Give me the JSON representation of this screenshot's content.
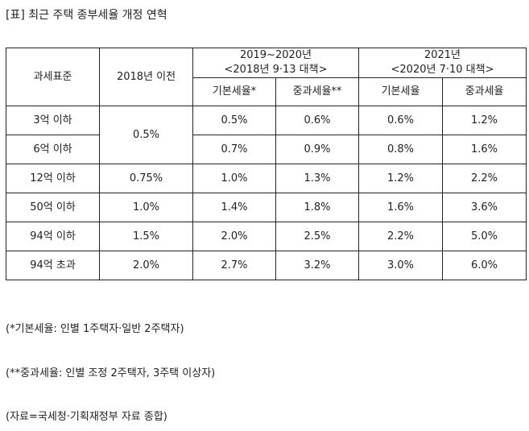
{
  "title": "[표] 최근 주택 종부세율 개정 연혁",
  "table": {
    "headers": {
      "tax_base": "과세표준",
      "before_2018": "2018년 이전",
      "period_2019_2020": "2019~2020년",
      "period_2019_2020_sub": "<2018년 9·13 대책>",
      "period_2021": "2021년",
      "period_2021_sub": "<2020년 7·10 대책>",
      "basic_rate_2019": "기본세율*",
      "heavy_rate_2019": "중과세율**",
      "basic_rate_2021": "기본세율",
      "heavy_rate_2021": "중과세율"
    },
    "rows": [
      {
        "base": "3억 이하",
        "before_2018": "0.5%",
        "basic_2019": "0.5%",
        "heavy_2019": "0.6%",
        "basic_2021": "0.6%",
        "heavy_2021": "1.2%"
      },
      {
        "base": "6억 이하",
        "before_2018": "0.5%",
        "basic_2019": "0.7%",
        "heavy_2019": "0.9%",
        "basic_2021": "0.8%",
        "heavy_2021": "1.6%"
      },
      {
        "base": "12억 이하",
        "before_2018": "0.75%",
        "basic_2019": "1.0%",
        "heavy_2019": "1.3%",
        "basic_2021": "1.2%",
        "heavy_2021": "2.2%"
      },
      {
        "base": "50억 이하",
        "before_2018": "1.0%",
        "basic_2019": "1.4%",
        "heavy_2019": "1.8%",
        "basic_2021": "1.6%",
        "heavy_2021": "3.6%"
      },
      {
        "base": "94억 이하",
        "before_2018": "1.5%",
        "basic_2019": "2.0%",
        "heavy_2019": "2.5%",
        "basic_2021": "2.2%",
        "heavy_2021": "5.0%"
      },
      {
        "base": "94억 초과",
        "before_2018": "2.0%",
        "basic_2019": "2.7%",
        "heavy_2019": "3.2%",
        "basic_2021": "3.0%",
        "heavy_2021": "6.0%"
      }
    ]
  },
  "notes": {
    "basic": "(*기본세율: 인별 1주택자·일반 2주택자)",
    "heavy": "(**중과세율: 인별 조정 2주택자, 3주택 이상자)",
    "source": "(자료=국세청·기획재정부 자료 종합)"
  }
}
